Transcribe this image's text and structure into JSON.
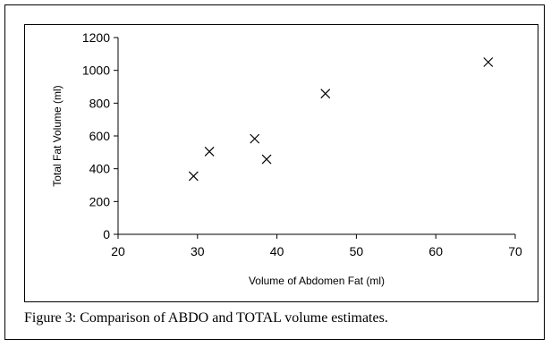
{
  "caption": "Figure 3: Comparison of ABDO and TOTAL volume estimates.",
  "chart_data": {
    "type": "scatter",
    "title": "",
    "xlabel": "Volume of Abdomen Fat (ml)",
    "ylabel": "Total Fat Volume (ml)",
    "xlim": [
      20,
      70
    ],
    "ylim": [
      0,
      1200
    ],
    "xticks": [
      20,
      30,
      40,
      50,
      60,
      70
    ],
    "yticks": [
      0,
      200,
      400,
      600,
      800,
      1000,
      1200
    ],
    "grid": false,
    "legend": "none",
    "marker": "x",
    "color": "#000000",
    "series": [
      {
        "x": [
          29.5,
          31.5,
          37.2,
          38.7,
          46.1,
          66.6
        ],
        "y": [
          355,
          505,
          583,
          458,
          858,
          1050
        ]
      }
    ]
  }
}
